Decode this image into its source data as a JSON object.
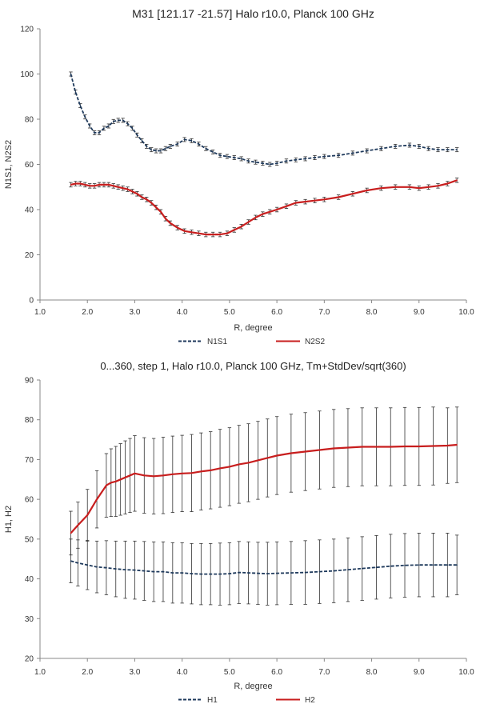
{
  "chart_data": [
    {
      "type": "line",
      "title": "M31  [121.17  -21.57]  Halo r10.0, Planck 100 GHz",
      "xlabel": "R, degree",
      "ylabel": "N1S1, N2S2",
      "xlim": [
        1.0,
        10.0
      ],
      "ylim": [
        0,
        120
      ],
      "xticks": [
        "1.0",
        "2.0",
        "3.0",
        "4.0",
        "5.0",
        "6.0",
        "7.0",
        "8.0",
        "9.0",
        "10.0"
      ],
      "yticks": [
        "0",
        "20",
        "40",
        "60",
        "80",
        "100",
        "120"
      ],
      "grid": false,
      "legend": "bottom",
      "series": [
        {
          "name": "N1S1",
          "color": "#1f3a5c",
          "dash": true,
          "error": 0.9,
          "x": [
            1.65,
            1.75,
            1.85,
            1.95,
            2.05,
            2.15,
            2.25,
            2.35,
            2.45,
            2.55,
            2.65,
            2.75,
            2.85,
            2.95,
            3.05,
            3.15,
            3.25,
            3.35,
            3.45,
            3.55,
            3.65,
            3.75,
            3.9,
            4.05,
            4.2,
            4.35,
            4.5,
            4.65,
            4.8,
            4.95,
            5.1,
            5.25,
            5.4,
            5.55,
            5.7,
            5.85,
            6.0,
            6.2,
            6.4,
            6.6,
            6.8,
            7.0,
            7.3,
            7.6,
            7.9,
            8.2,
            8.5,
            8.8,
            9.0,
            9.2,
            9.4,
            9.6,
            9.8
          ],
          "values": [
            100,
            92,
            86,
            81,
            77,
            74,
            74,
            76,
            77,
            79,
            79.5,
            79.5,
            78,
            76,
            73,
            70.5,
            68,
            66.5,
            66,
            66,
            67,
            68,
            69,
            71,
            70.5,
            69,
            67,
            65.5,
            64,
            63.5,
            63,
            62.5,
            61.5,
            61,
            60.5,
            60,
            60.5,
            61.5,
            62,
            62.5,
            63,
            63.5,
            64,
            65,
            66,
            67,
            68,
            68.5,
            68,
            67,
            66.5,
            66.5,
            66.5
          ]
        },
        {
          "name": "N2S2",
          "color": "#c81e1e",
          "dash": false,
          "error": 1.0,
          "x": [
            1.65,
            1.75,
            1.85,
            1.95,
            2.05,
            2.15,
            2.25,
            2.35,
            2.45,
            2.55,
            2.65,
            2.75,
            2.85,
            2.95,
            3.05,
            3.15,
            3.25,
            3.35,
            3.45,
            3.55,
            3.65,
            3.75,
            3.9,
            4.05,
            4.2,
            4.35,
            4.5,
            4.65,
            4.8,
            4.95,
            5.1,
            5.25,
            5.4,
            5.55,
            5.7,
            5.85,
            6.0,
            6.2,
            6.4,
            6.6,
            6.8,
            7.0,
            7.3,
            7.6,
            7.9,
            8.2,
            8.5,
            8.8,
            9.0,
            9.2,
            9.4,
            9.6,
            9.8
          ],
          "values": [
            51,
            51.5,
            51.5,
            51,
            50.5,
            50.5,
            51,
            51,
            51,
            50.5,
            50,
            49.5,
            49,
            48,
            47,
            45.5,
            44.5,
            43,
            41,
            39,
            36,
            34,
            32,
            30.5,
            30,
            29.5,
            29,
            29,
            29,
            29.5,
            31,
            32.5,
            34.5,
            36.5,
            38,
            39,
            40,
            41.5,
            43,
            43.5,
            44,
            44.5,
            45.5,
            47,
            48.5,
            49.5,
            50,
            50,
            49.5,
            50,
            50.5,
            51.5,
            53
          ]
        }
      ]
    },
    {
      "type": "line",
      "title": "0...360, step 1, Halo r10.0, Planck 100 GHz, Tm+StdDev/sqrt(360)",
      "xlabel": "R, degree",
      "ylabel": "H1, H2",
      "xlim": [
        1.0,
        10.0
      ],
      "ylim": [
        20,
        90
      ],
      "xticks": [
        "1.0",
        "2.0",
        "3.0",
        "4.0",
        "5.0",
        "6.0",
        "7.0",
        "8.0",
        "9.0",
        "10.0"
      ],
      "yticks": [
        "20",
        "30",
        "40",
        "50",
        "60",
        "70",
        "80",
        "90"
      ],
      "grid": false,
      "legend": "bottom",
      "series": [
        {
          "name": "H1",
          "color": "#1f3a5c",
          "dash": true,
          "x": [
            1.65,
            1.8,
            2.0,
            2.2,
            2.4,
            2.6,
            2.8,
            3.0,
            3.2,
            3.4,
            3.6,
            3.8,
            4.0,
            4.2,
            4.4,
            4.6,
            4.8,
            5.0,
            5.2,
            5.4,
            5.6,
            5.8,
            6.0,
            6.3,
            6.6,
            6.9,
            7.2,
            7.5,
            7.8,
            8.1,
            8.4,
            8.7,
            9.0,
            9.3,
            9.6,
            9.8
          ],
          "values": [
            44.5,
            44,
            43.5,
            43,
            42.8,
            42.5,
            42.3,
            42.2,
            42,
            41.8,
            41.8,
            41.5,
            41.5,
            41.3,
            41.2,
            41.2,
            41.2,
            41.3,
            41.6,
            41.5,
            41.4,
            41.3,
            41.4,
            41.5,
            41.6,
            41.8,
            42,
            42.3,
            42.6,
            42.9,
            43.2,
            43.4,
            43.5,
            43.5,
            43.5,
            43.5
          ],
          "err": [
            5.5,
            5.8,
            6.2,
            6.5,
            6.8,
            7,
            7.2,
            7.3,
            7.4,
            7.5,
            7.5,
            7.6,
            7.6,
            7.6,
            7.7,
            7.7,
            7.8,
            7.8,
            7.8,
            7.8,
            7.8,
            7.9,
            7.9,
            7.9,
            8,
            8,
            8,
            8,
            8,
            8,
            8,
            8,
            8,
            8,
            8,
            7.5
          ]
        },
        {
          "name": "H2",
          "color": "#c81e1e",
          "dash": false,
          "x": [
            1.65,
            1.8,
            2.0,
            2.2,
            2.4,
            2.5,
            2.6,
            2.7,
            2.8,
            2.9,
            3.0,
            3.2,
            3.4,
            3.6,
            3.8,
            4.0,
            4.2,
            4.4,
            4.6,
            4.8,
            5.0,
            5.2,
            5.4,
            5.6,
            5.8,
            6.0,
            6.3,
            6.6,
            6.9,
            7.2,
            7.5,
            7.8,
            8.1,
            8.4,
            8.7,
            9.0,
            9.3,
            9.6,
            9.8
          ],
          "values": [
            51.5,
            53.5,
            56,
            60,
            63.5,
            64.2,
            64.5,
            65,
            65.5,
            66,
            66.5,
            66,
            65.8,
            66,
            66.3,
            66.5,
            66.6,
            67,
            67.3,
            67.8,
            68.2,
            68.8,
            69.2,
            69.8,
            70.4,
            71,
            71.6,
            72,
            72.4,
            72.8,
            73,
            73.2,
            73.2,
            73.2,
            73.3,
            73.3,
            73.4,
            73.5,
            73.7
          ],
          "err": [
            5.5,
            5.8,
            6.5,
            7.2,
            8,
            8.5,
            8.8,
            9,
            9.2,
            9.3,
            9.5,
            9.5,
            9.5,
            9.6,
            9.6,
            9.6,
            9.7,
            9.7,
            9.7,
            9.8,
            9.8,
            9.8,
            9.8,
            9.8,
            9.8,
            9.8,
            9.8,
            9.8,
            9.8,
            9.8,
            9.8,
            9.8,
            9.8,
            9.8,
            9.8,
            9.8,
            9.8,
            9.5,
            9.5
          ]
        }
      ]
    }
  ]
}
